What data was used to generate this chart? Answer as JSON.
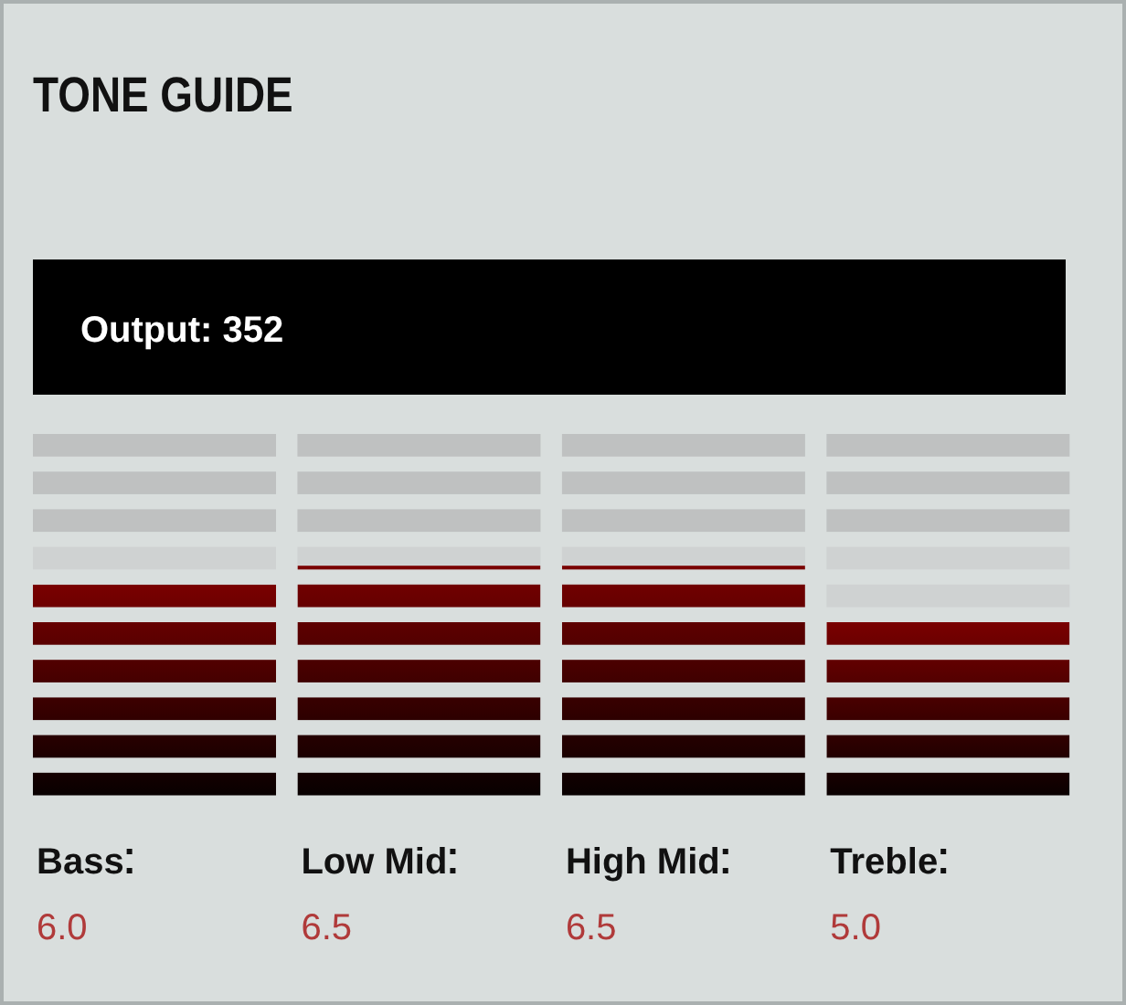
{
  "chart_data": {
    "type": "bar",
    "title": "TONE GUIDE",
    "annotations": [
      "Output: 352"
    ],
    "categories": [
      "Bass",
      "Low Mid",
      "High Mid",
      "Treble"
    ],
    "values": [
      6.0,
      6.5,
      6.5,
      5.0
    ],
    "value_labels": [
      "6.0",
      "6.5",
      "6.5",
      "5.0"
    ],
    "color": "#7a0000",
    "ylim": [
      0,
      10
    ]
  }
}
